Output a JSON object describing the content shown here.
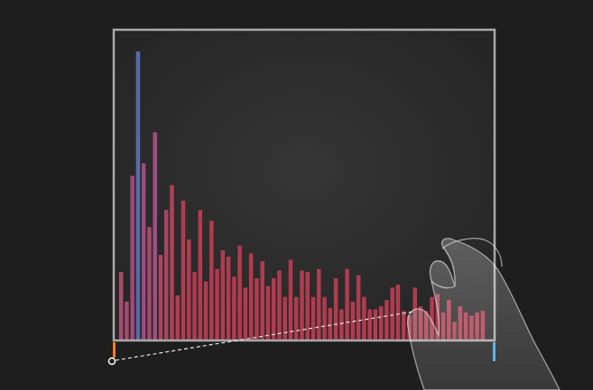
{
  "chart_data": {
    "type": "bar",
    "categories": [
      null,
      null,
      null,
      null,
      null,
      null,
      null,
      null,
      null,
      null,
      null,
      null,
      null,
      null,
      null,
      null,
      null,
      null,
      null,
      null,
      null,
      null,
      null,
      null,
      null,
      null,
      null,
      null,
      null,
      null,
      null,
      null,
      null,
      null,
      null,
      null,
      null,
      null,
      null,
      null,
      null,
      null,
      null,
      null,
      null,
      null,
      null,
      null,
      null,
      null,
      null,
      null,
      null,
      null,
      null,
      null,
      null,
      null,
      null,
      null,
      null,
      null,
      null,
      null,
      null
    ],
    "values": [
      22,
      12.5,
      53,
      93,
      57,
      36.5,
      67,
      27.5,
      42,
      50,
      14.5,
      45,
      32.5,
      22,
      42,
      19,
      38.5,
      23,
      29,
      27,
      20.5,
      30.5,
      17,
      28,
      20,
      25.5,
      17.5,
      20,
      22.5,
      14,
      26,
      14,
      22.5,
      22,
      14,
      23,
      14,
      10.5,
      20,
      10,
      23,
      12.5,
      21,
      14,
      10,
      10,
      11,
      13,
      17,
      18,
      9.5,
      8,
      17,
      11,
      9.5,
      14,
      15,
      9,
      13,
      6,
      11,
      9,
      8,
      9,
      9.5
    ],
    "colors": [
      "#a34d72",
      "#a84a6c",
      "#a0487a",
      "#5b6aa6",
      "#9c4c7c",
      "#a64a6c",
      "#9e5084",
      "#aa4664",
      "#ac4460",
      "#ae4258",
      "#b03e54",
      "#b03c52",
      "#b03c50",
      "#b03c50",
      "#b03c50",
      "#b03c50",
      "#b03c50",
      "#b03c50",
      "#b03c50",
      "#b03c50",
      "#b03c50",
      "#b03c50",
      "#b03c50",
      "#b03c50",
      "#b03c50",
      "#b03c50",
      "#b03c50",
      "#b03c50",
      "#b03c50",
      "#b03c50",
      "#b03c50",
      "#b03c50",
      "#b03c50",
      "#b03c50",
      "#b03c50",
      "#b03c50",
      "#b03c50",
      "#b03c50",
      "#b03c50",
      "#b03c50",
      "#b03c50",
      "#b03c50",
      "#b03c50",
      "#b03c50",
      "#b03c50",
      "#b03c50",
      "#b03c50",
      "#b03c50",
      "#b03c50",
      "#b03c50",
      "#b03c50",
      "#b03c50",
      "#b03c50",
      "#b03c50",
      "#b03c50",
      "#b03c50",
      "#b03c50",
      "#b03c50",
      "#b03c50",
      "#b03c50",
      "#b03c50",
      "#b03c50",
      "#b03c50",
      "#b03c50",
      "#b03c50"
    ],
    "ylim": [
      0,
      100
    ],
    "tick_labels": false,
    "grid": false
  }
}
